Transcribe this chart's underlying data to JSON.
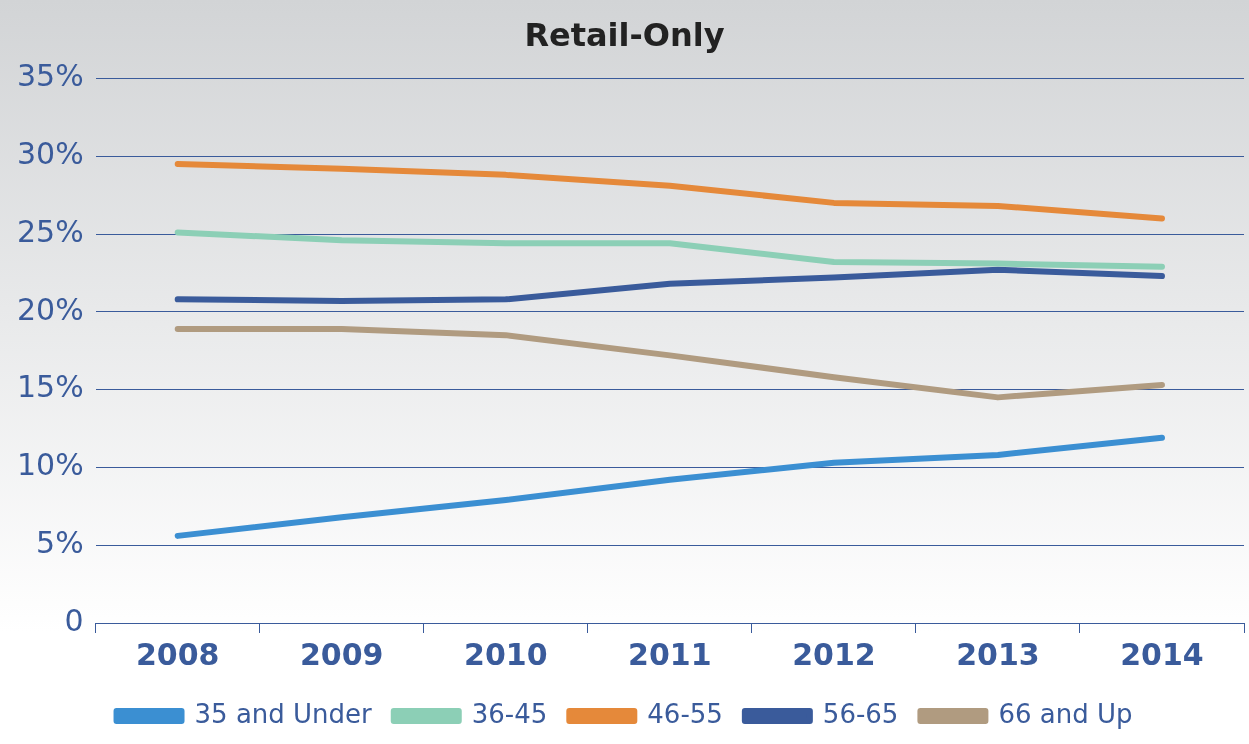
{
  "chart_data": {
    "type": "line",
    "title": "Retail-Only",
    "categories": [
      "2008",
      "2009",
      "2010",
      "2011",
      "2012",
      "2013",
      "2014"
    ],
    "series": [
      {
        "name": "35 and Under",
        "color": "#3b8fd2",
        "values": [
          5.6,
          6.8,
          7.9,
          9.2,
          10.3,
          10.8,
          11.9
        ]
      },
      {
        "name": "36-45",
        "color": "#8ccfb6",
        "values": [
          25.1,
          24.6,
          24.4,
          24.4,
          23.2,
          23.1,
          22.9
        ]
      },
      {
        "name": "46-55",
        "color": "#e5893a",
        "values": [
          29.5,
          29.2,
          28.8,
          28.1,
          27.0,
          26.8,
          26.0
        ]
      },
      {
        "name": "56-65",
        "color": "#3a5b9b",
        "values": [
          20.8,
          20.7,
          20.8,
          21.8,
          22.2,
          22.7,
          22.3
        ]
      },
      {
        "name": "66 and Up",
        "color": "#b09b80",
        "values": [
          18.9,
          18.9,
          18.5,
          17.2,
          15.8,
          14.5,
          15.3
        ]
      }
    ],
    "ylim": [
      0,
      35
    ],
    "yticks": [
      {
        "value": 0,
        "label": "0"
      },
      {
        "value": 5,
        "label": "5%"
      },
      {
        "value": 10,
        "label": "10%"
      },
      {
        "value": 15,
        "label": "15%"
      },
      {
        "value": 20,
        "label": "20%"
      },
      {
        "value": 25,
        "label": "25%"
      },
      {
        "value": 30,
        "label": "30%"
      },
      {
        "value": 35,
        "label": "35%"
      }
    ],
    "grid": "y",
    "legend": "bottom",
    "marker": "none",
    "line_style": "solid"
  }
}
